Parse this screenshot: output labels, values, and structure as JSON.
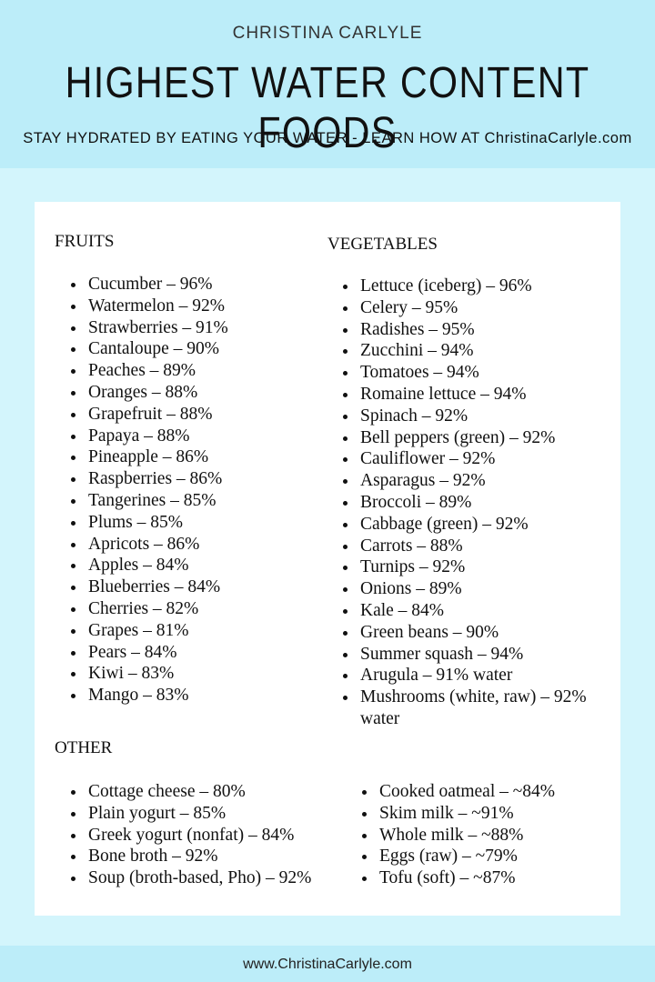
{
  "header": {
    "brand": "CHRISTINA CARLYLE",
    "title": "HIGHEST WATER CONTENT FOODS",
    "subtitle": "STAY HYDRATED BY EATING YOUR WATER - LEARN HOW AT ChristinaCarlyle.com"
  },
  "fruits": {
    "heading": "FRUITS",
    "items": [
      "Cucumber – 96%",
      "Watermelon – 92%",
      "Strawberries – 91%",
      "Cantaloupe – 90%",
      "Peaches – 89%",
      "Oranges – 88%",
      "Grapefruit – 88%",
      "Papaya – 88%",
      "Pineapple – 86%",
      "Raspberries – 86%",
      "Tangerines – 85%",
      "Plums – 85%",
      "Apricots – 86%",
      "Apples – 84%",
      "Blueberries – 84%",
      "Cherries – 82%",
      "Grapes – 81%",
      "Pears – 84%",
      "Kiwi – 83%",
      "Mango – 83%"
    ]
  },
  "vegetables": {
    "heading": "VEGETABLES",
    "items": [
      "Lettuce (iceberg) – 96%",
      "Celery – 95%",
      "Radishes – 95%",
      "Zucchini – 94%",
      "Tomatoes – 94%",
      "Romaine lettuce – 94%",
      "Spinach – 92%",
      "Bell peppers (green) – 92%",
      "Cauliflower – 92%",
      "Asparagus – 92%",
      "Broccoli – 89%",
      "Cabbage (green) – 92%",
      "Carrots – 88%",
      "Turnips – 92%",
      "Onions – 89%",
      "Kale – 84%",
      "Green beans – 90%",
      "Summer squash – 94%",
      "Arugula – 91% water",
      "Mushrooms (white, raw) – 92% water"
    ]
  },
  "other": {
    "heading": "OTHER",
    "left": [
      "Cottage cheese – 80%",
      "Plain yogurt – 85%",
      "Greek yogurt (nonfat) – 84%",
      "Bone broth – 92%",
      "Soup (broth-based, Pho) – 92%"
    ],
    "right": [
      "Cooked oatmeal – ~84%",
      "Skim milk – ~91%",
      "Whole milk – ~88%",
      "Eggs (raw) – ~79%",
      "Tofu (soft) – ~87%"
    ]
  },
  "footer": {
    "url": "www.ChristinaCarlyle.com"
  }
}
